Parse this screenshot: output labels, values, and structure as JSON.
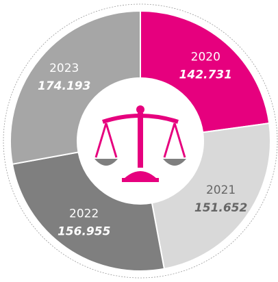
{
  "chart_data": {
    "type": "donut",
    "categories": [
      "2020",
      "2021",
      "2022",
      "2023"
    ],
    "values": [
      142731,
      151652,
      156955,
      174193
    ],
    "value_labels": [
      "142.731",
      "151.652",
      "156.955",
      "174.193"
    ],
    "colors": [
      "#e6007e",
      "#d9d9d9",
      "#7f7f7f",
      "#a6a6a6"
    ],
    "label_colors": [
      "#ffffff",
      "#666666",
      "#ffffff",
      "#ffffff"
    ]
  }
}
